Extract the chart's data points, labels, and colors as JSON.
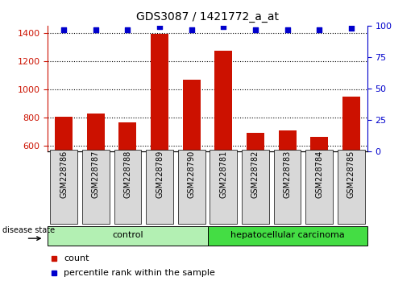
{
  "title": "GDS3087 / 1421772_a_at",
  "samples": [
    "GSM228786",
    "GSM228787",
    "GSM228788",
    "GSM228789",
    "GSM228790",
    "GSM228781",
    "GSM228782",
    "GSM228783",
    "GSM228784",
    "GSM228785"
  ],
  "counts": [
    805,
    830,
    770,
    1395,
    1070,
    1275,
    693,
    712,
    665,
    950
  ],
  "percentile_ranks": [
    97,
    97,
    97,
    99,
    97,
    99,
    97,
    97,
    97,
    98
  ],
  "groups": [
    {
      "label": "control",
      "start": 0,
      "end": 5,
      "color": "#b3f0b3"
    },
    {
      "label": "hepatocellular carcinoma",
      "start": 5,
      "end": 10,
      "color": "#44dd44"
    }
  ],
  "ylim_left": [
    565,
    1450
  ],
  "ylim_right": [
    0,
    100
  ],
  "yticks_left": [
    600,
    800,
    1000,
    1200,
    1400
  ],
  "yticks_right": [
    0,
    25,
    50,
    75,
    100
  ],
  "bar_color": "#cc1100",
  "dot_color": "#0000cc",
  "tick_color_left": "#cc1100",
  "tick_color_right": "#0000cc",
  "disease_state_label": "disease state",
  "bar_width": 0.55
}
